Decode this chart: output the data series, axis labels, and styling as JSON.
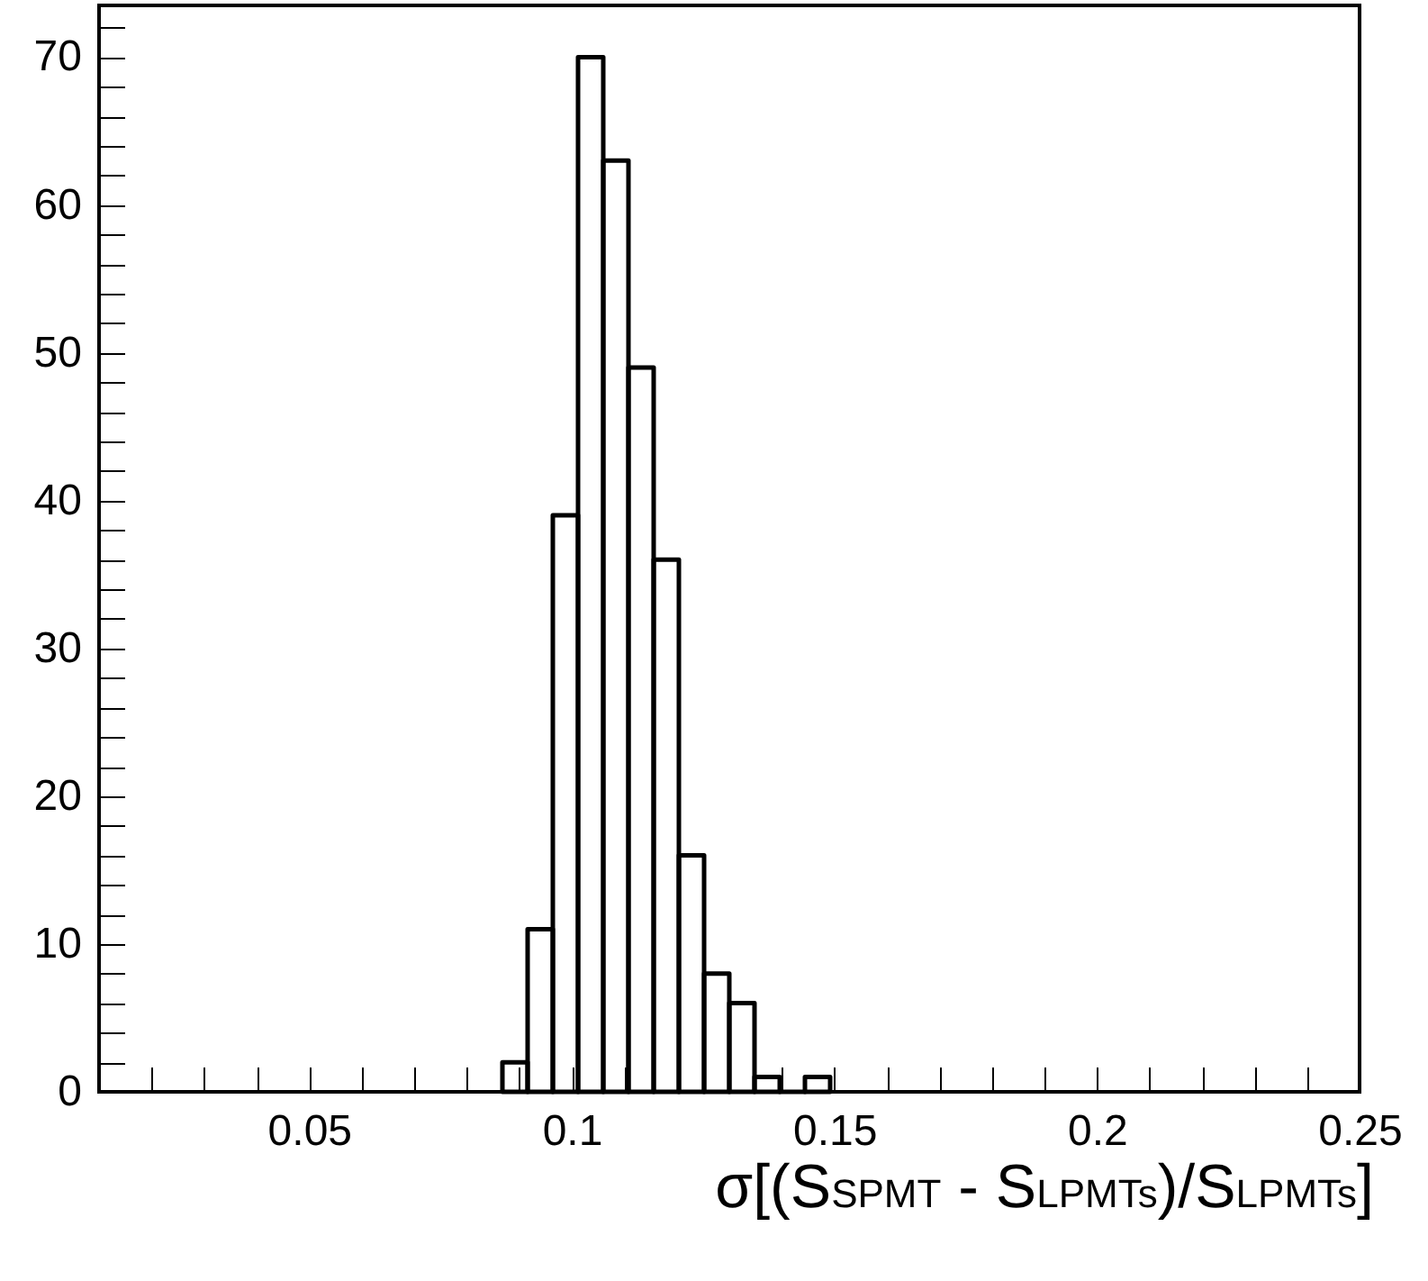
{
  "chart_data": {
    "type": "histogram",
    "xlabel": "σ[(S$_{SPMT}$ - S$_{LPMTs}$)/S$_{LPMTs}$]",
    "bins": [
      0.0868,
      0.0916,
      0.0964,
      0.1012,
      0.106,
      0.1108,
      0.1156,
      0.1204,
      0.1252,
      0.13,
      0.1348,
      0.1396,
      0.1444,
      0.1492
    ],
    "values": [
      2,
      11,
      39,
      70,
      63,
      49,
      36,
      16,
      8,
      6,
      1,
      0,
      1
    ],
    "color": "#000000",
    "xlim": [
      0.01,
      0.25
    ],
    "xticks": [
      {
        "value": 0.02,
        "label": null
      },
      {
        "value": 0.03,
        "label": null
      },
      {
        "value": 0.04,
        "label": null
      },
      0.05,
      {
        "value": 0.06,
        "label": null
      },
      {
        "value": 0.07,
        "label": null
      },
      {
        "value": 0.08,
        "label": null
      },
      {
        "value": 0.09,
        "label": null
      },
      0.1,
      {
        "value": 0.11,
        "label": null
      },
      {
        "value": 0.12,
        "label": null
      },
      {
        "value": 0.13,
        "label": null
      },
      {
        "value": 0.14,
        "label": null
      },
      0.15,
      {
        "value": 0.16,
        "label": null
      },
      {
        "value": 0.17,
        "label": null
      },
      {
        "value": 0.18,
        "label": null
      },
      {
        "value": 0.19,
        "label": null
      },
      0.2,
      {
        "value": 0.21,
        "label": null
      },
      {
        "value": 0.22,
        "label": null
      },
      {
        "value": 0.23,
        "label": null
      },
      {
        "value": 0.24,
        "label": null
      },
      0.25
    ],
    "ylim": [
      0,
      73.5
    ],
    "yticks": [
      0,
      {
        "value": 2,
        "label": null
      },
      {
        "value": 4,
        "label": null
      },
      {
        "value": 6,
        "label": null
      },
      {
        "value": 8,
        "label": null
      },
      10,
      {
        "value": 12,
        "label": null
      },
      {
        "value": 14,
        "label": null
      },
      {
        "value": 16,
        "label": null
      },
      {
        "value": 18,
        "label": null
      },
      20,
      {
        "value": 22,
        "label": null
      },
      {
        "value": 24,
        "label": null
      },
      {
        "value": 26,
        "label": null
      },
      {
        "value": 28,
        "label": null
      },
      30,
      {
        "value": 32,
        "label": null
      },
      {
        "value": 34,
        "label": null
      },
      {
        "value": 36,
        "label": null
      },
      {
        "value": 38,
        "label": null
      },
      40,
      {
        "value": 42,
        "label": null
      },
      {
        "value": 44,
        "label": null
      },
      {
        "value": 46,
        "label": null
      },
      {
        "value": 48,
        "label": null
      },
      50,
      {
        "value": 52,
        "label": null
      },
      {
        "value": 54,
        "label": null
      },
      {
        "value": 56,
        "label": null
      },
      {
        "value": 58,
        "label": null
      },
      60,
      {
        "value": 62,
        "label": null
      },
      {
        "value": 64,
        "label": null
      },
      {
        "value": 66,
        "label": null
      },
      {
        "value": 68,
        "label": null
      },
      70,
      {
        "value": 72,
        "label": null
      }
    ],
    "grid": false
  }
}
